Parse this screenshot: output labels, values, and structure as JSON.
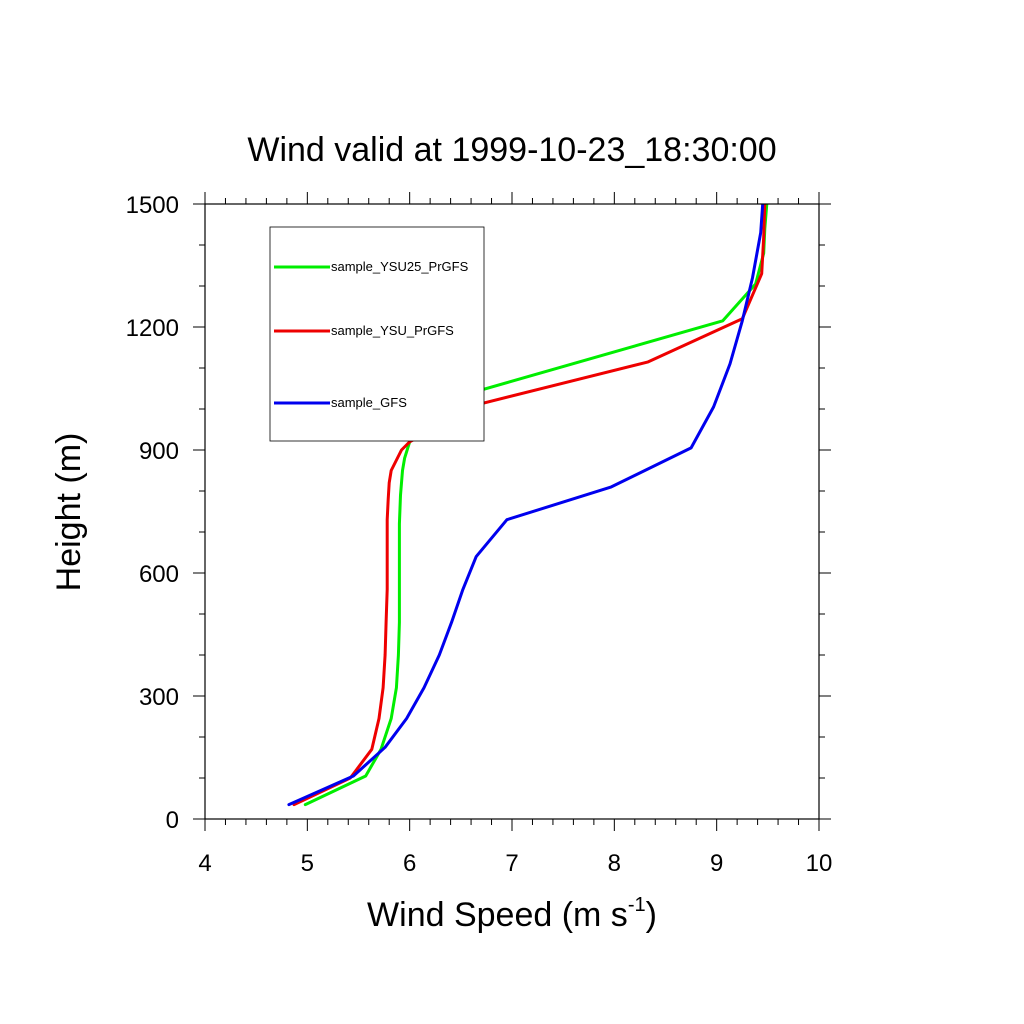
{
  "chart_data": {
    "type": "line",
    "title": "Wind valid at 1999-10-23_18:30:00",
    "xlabel": "Wind Speed (m s",
    "xlabel_sup": "-1",
    "xlabel_close": ")",
    "ylabel": "Height (m)",
    "xlim": [
      4,
      10
    ],
    "ylim": [
      0,
      1500
    ],
    "xticks": [
      4,
      5,
      6,
      7,
      8,
      9,
      10
    ],
    "yticks": [
      0,
      300,
      600,
      900,
      1200,
      1500
    ],
    "grid": false,
    "legend_position": "top-left",
    "series": [
      {
        "name": "sample_YSU25_PrGFS",
        "color": "#00ee00",
        "x": [
          4.98,
          5.57,
          5.72,
          5.82,
          5.87,
          5.89,
          5.9,
          5.9,
          5.9,
          5.9,
          5.91,
          5.93,
          5.95,
          6.0,
          6.19,
          9.06,
          9.38,
          9.46,
          9.47,
          9.49
        ],
        "y": [
          35,
          105,
          170,
          245,
          320,
          400,
          480,
          560,
          640,
          720,
          790,
          850,
          880,
          920,
          1010,
          1215,
          1305,
          1380,
          1440,
          1500
        ]
      },
      {
        "name": "sample_YSU_PrGFS",
        "color": "#ee0000",
        "x": [
          4.87,
          5.42,
          5.63,
          5.7,
          5.74,
          5.76,
          5.77,
          5.78,
          5.78,
          5.78,
          5.79,
          5.8,
          5.82,
          5.92,
          6.0,
          6.65,
          8.33,
          9.25,
          9.44,
          9.46,
          9.47
        ],
        "y": [
          35,
          100,
          170,
          245,
          320,
          400,
          480,
          560,
          640,
          730,
          780,
          820,
          850,
          900,
          920,
          1010,
          1115,
          1220,
          1330,
          1420,
          1500
        ]
      },
      {
        "name": "sample_GFS",
        "color": "#0000ee",
        "x": [
          4.82,
          5.45,
          5.76,
          5.97,
          6.14,
          6.29,
          6.41,
          6.52,
          6.65,
          6.95,
          7.97,
          8.75,
          8.97,
          9.13,
          9.25,
          9.35,
          9.43,
          9.45
        ],
        "y": [
          35,
          105,
          175,
          245,
          320,
          400,
          480,
          560,
          640,
          730,
          810,
          905,
          1005,
          1110,
          1215,
          1320,
          1430,
          1500
        ]
      }
    ]
  }
}
